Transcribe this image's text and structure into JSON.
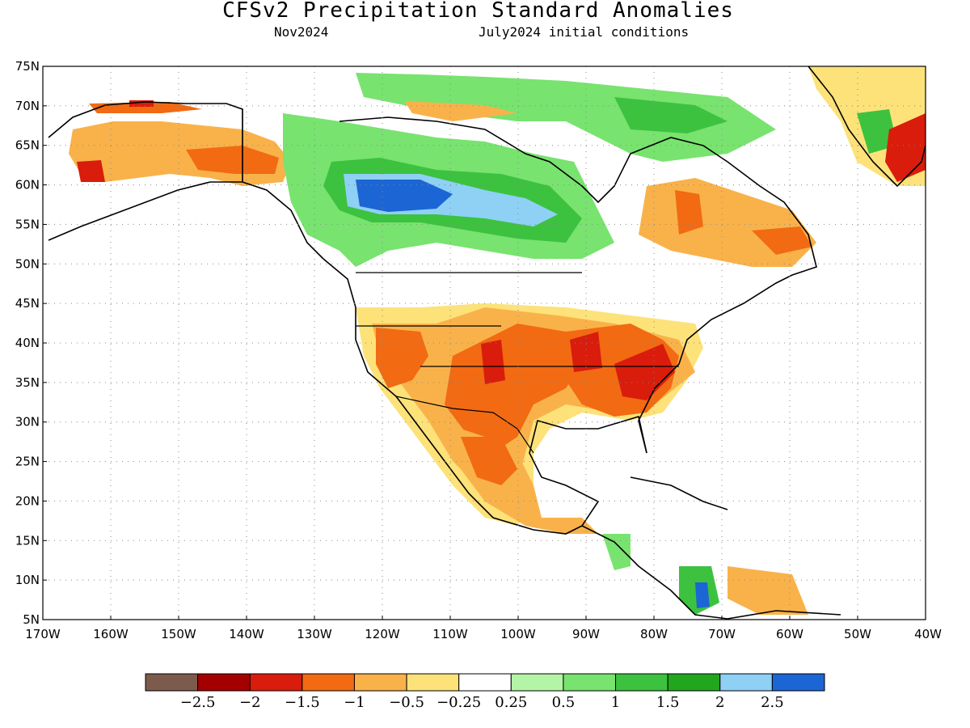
{
  "title": "CFSv2 Precipitation Standard Anomalies",
  "subtitle_left": "Nov2024",
  "subtitle_right": "July2024 initial conditions",
  "lat_labels": [
    "75N",
    "70N",
    "65N",
    "60N",
    "55N",
    "50N",
    "45N",
    "40N",
    "35N",
    "30N",
    "25N",
    "20N",
    "15N",
    "10N",
    "5N"
  ],
  "lon_labels": [
    "170W",
    "160W",
    "150W",
    "140W",
    "130W",
    "120W",
    "110W",
    "100W",
    "90W",
    "80W",
    "70W",
    "60W",
    "50W",
    "40W"
  ],
  "colorbar": {
    "colors": [
      "#7c5a4c",
      "#a50000",
      "#d91c0c",
      "#f26a12",
      "#f9b24a",
      "#fde27a",
      "#ffffff",
      "#b4f4a6",
      "#78e36f",
      "#3cc23f",
      "#22a61d",
      "#8fd0f5",
      "#1b66d4"
    ],
    "labels": [
      "−2.5",
      "−2",
      "−1.5",
      "−1",
      "−0.5",
      "−0.25",
      "0.25",
      "0.5",
      "1",
      "1.5",
      "2",
      "2.5"
    ]
  },
  "map_data": {
    "lat_range": [
      5,
      75
    ],
    "lon_range": [
      -170,
      -40
    ],
    "grid_lines": "dotted every 5° latitude and 10° longitude",
    "anomaly_regions": [
      {
        "region": "Alaska",
        "sign": "dry",
        "level": -1
      },
      {
        "region": "Southwest Alaska",
        "sign": "dry",
        "level": -1.5
      },
      {
        "region": "Central Canada (Saskatchewan/Manitoba)",
        "sign": "wet",
        "level": 2.5
      },
      {
        "region": "Hudson Bay / Northern Ontario",
        "sign": "wet",
        "level": 1.5
      },
      {
        "region": "Great Basin / California interior",
        "sign": "dry",
        "level": -1.5
      },
      {
        "region": "Southern Rockies / Colorado",
        "sign": "dry",
        "level": -1.5
      },
      {
        "region": "Texas / Southern Plains",
        "sign": "dry",
        "level": -1
      },
      {
        "region": "Ohio Valley",
        "sign": "dry",
        "level": -1.5
      },
      {
        "region": "Southeast US / Carolinas",
        "sign": "dry",
        "level": -1.5
      },
      {
        "region": "Mexico",
        "sign": "dry",
        "level": -1
      },
      {
        "region": "Eastern Greenland",
        "sign": "dry",
        "level": -1.5
      },
      {
        "region": "Labrador / Quebec",
        "sign": "dry",
        "level": -1
      },
      {
        "region": "Northern Colombia",
        "sign": "wet",
        "level": 2.5
      }
    ]
  }
}
